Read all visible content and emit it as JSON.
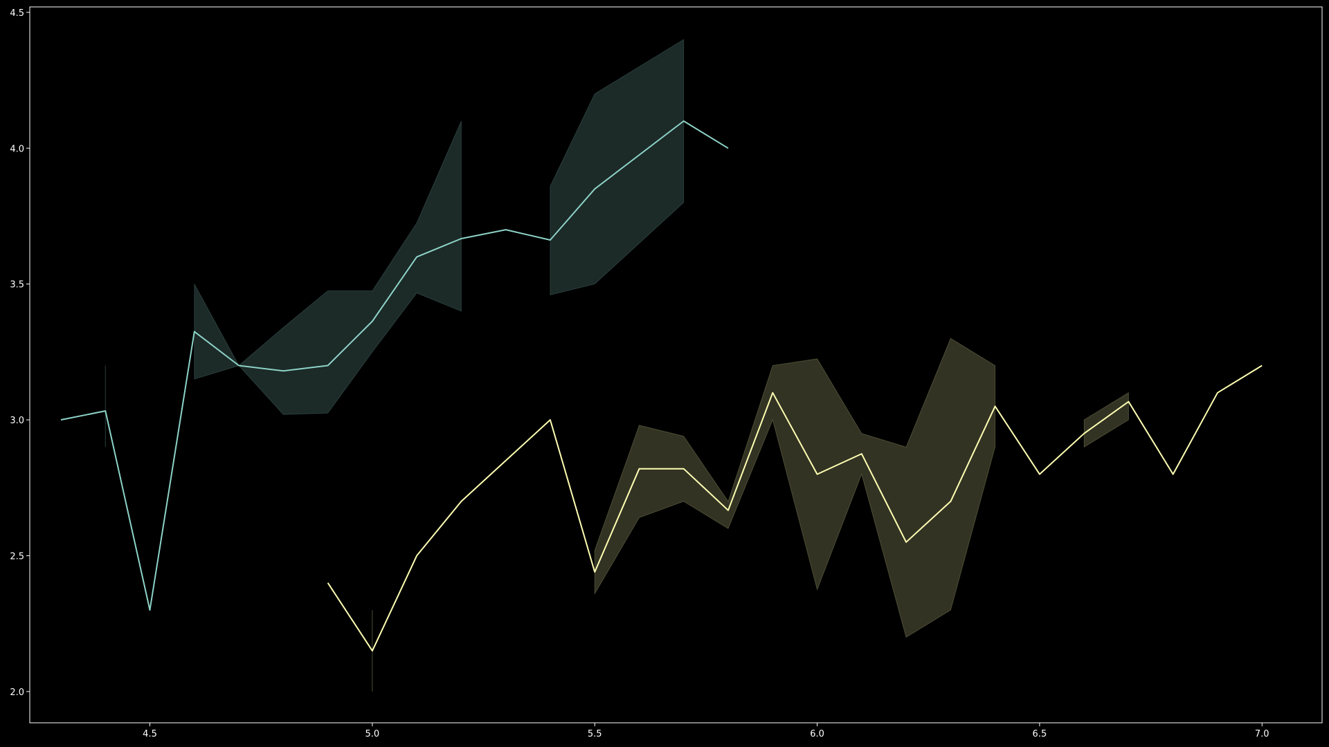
{
  "chart_data": {
    "type": "line",
    "background": "#000000",
    "axis_color": "#ffffff",
    "grid": false,
    "legend": "none",
    "xlim": [
      4.23,
      7.135
    ],
    "ylim": [
      1.885,
      4.52
    ],
    "xticks": [
      4.5,
      5.0,
      5.5,
      6.0,
      6.5,
      7.0
    ],
    "xtick_labels": [
      "4.5",
      "5.0",
      "5.5",
      "6.0",
      "6.5",
      "7.0"
    ],
    "yticks": [
      2.0,
      2.5,
      3.0,
      3.5,
      4.0,
      4.5
    ],
    "ytick_labels": [
      "2.0",
      "2.5",
      "3.0",
      "3.5",
      "4.0",
      "4.5"
    ],
    "series": [
      {
        "color": "#8dd3c7",
        "band_color": "#8dd3c7",
        "points": [
          {
            "x": 4.3,
            "y": 3.0
          },
          {
            "x": 4.4,
            "y": 3.033,
            "lo": 2.9,
            "hi": 3.2
          },
          {
            "x": 4.5,
            "y": 2.3
          },
          {
            "x": 4.6,
            "y": 3.325,
            "lo": 3.15,
            "hi": 3.5
          },
          {
            "x": 4.7,
            "y": 3.2,
            "lo": 3.2,
            "hi": 3.2
          },
          {
            "x": 4.8,
            "y": 3.18,
            "lo": 3.02,
            "hi": 3.34
          },
          {
            "x": 4.9,
            "y": 3.2,
            "lo": 3.025,
            "hi": 3.475
          },
          {
            "x": 5.0,
            "y": 3.363,
            "lo": 3.25,
            "hi": 3.475
          },
          {
            "x": 5.1,
            "y": 3.6,
            "lo": 3.467,
            "hi": 3.725
          },
          {
            "x": 5.2,
            "y": 3.667,
            "lo": 3.4,
            "hi": 4.1
          },
          {
            "x": 5.3,
            "y": 3.7
          },
          {
            "x": 5.4,
            "y": 3.662,
            "lo": 3.46,
            "hi": 3.86
          },
          {
            "x": 5.5,
            "y": 3.85,
            "lo": 3.5,
            "hi": 4.2
          },
          {
            "x": 5.7,
            "y": 4.1,
            "lo": 3.8,
            "hi": 4.4
          },
          {
            "x": 5.8,
            "y": 4.0
          }
        ]
      },
      {
        "color": "#ffffb3",
        "band_color": "#ffffb3",
        "points": [
          {
            "x": 4.9,
            "y": 2.4
          },
          {
            "x": 5.0,
            "y": 2.15,
            "lo": 2.0,
            "hi": 2.3
          },
          {
            "x": 5.1,
            "y": 2.5
          },
          {
            "x": 5.2,
            "y": 2.7
          },
          {
            "x": 5.4,
            "y": 3.0
          },
          {
            "x": 5.5,
            "y": 2.44,
            "lo": 2.36,
            "hi": 2.52
          },
          {
            "x": 5.6,
            "y": 2.82,
            "lo": 2.64,
            "hi": 2.98
          },
          {
            "x": 5.7,
            "y": 2.82,
            "lo": 2.7,
            "hi": 2.94
          },
          {
            "x": 5.8,
            "y": 2.667,
            "lo": 2.6,
            "hi": 2.7
          },
          {
            "x": 5.9,
            "y": 3.1,
            "lo": 3.0,
            "hi": 3.2
          },
          {
            "x": 6.0,
            "y": 2.8,
            "lo": 2.375,
            "hi": 3.225
          },
          {
            "x": 6.1,
            "y": 2.875,
            "lo": 2.8,
            "hi": 2.95
          },
          {
            "x": 6.2,
            "y": 2.55,
            "lo": 2.2,
            "hi": 2.9
          },
          {
            "x": 6.3,
            "y": 2.7,
            "lo": 2.3,
            "hi": 3.3
          },
          {
            "x": 6.4,
            "y": 3.05,
            "lo": 2.9,
            "hi": 3.2
          },
          {
            "x": 6.5,
            "y": 2.8
          },
          {
            "x": 6.6,
            "y": 2.95,
            "lo": 2.9,
            "hi": 3.0
          },
          {
            "x": 6.7,
            "y": 3.067,
            "lo": 3.0,
            "hi": 3.1
          },
          {
            "x": 6.8,
            "y": 2.8
          },
          {
            "x": 6.9,
            "y": 3.1
          },
          {
            "x": 7.0,
            "y": 3.2
          }
        ]
      }
    ]
  }
}
